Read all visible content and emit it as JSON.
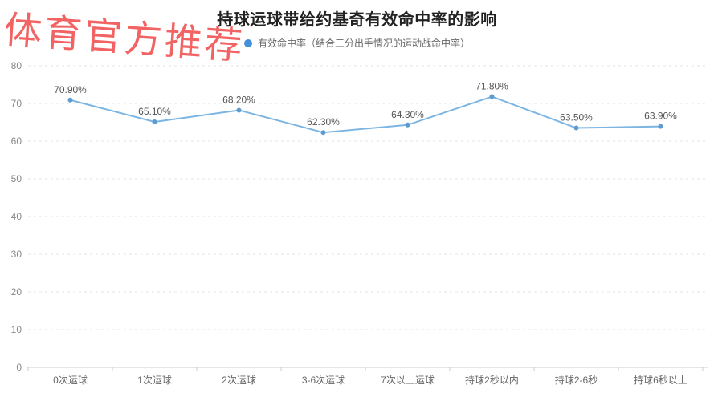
{
  "watermark": {
    "text": "体育官方推荐",
    "color": "#f26464"
  },
  "chart_data": {
    "type": "line",
    "title": "持球运球带给约基奇有效命中率的影响",
    "categories": [
      "0次运球",
      "1次运球",
      "2次运球",
      "3-6次运球",
      "7次以上运球",
      "持球2秒以内",
      "持球2-6秒",
      "持球6秒以上"
    ],
    "series": [
      {
        "name": "有效命中率（结合三分出手情况的运动战命中率）",
        "values": [
          70.9,
          65.1,
          68.2,
          62.3,
          64.3,
          71.8,
          63.5,
          63.9
        ],
        "labels": [
          "70.90%",
          "65.10%",
          "68.20%",
          "62.30%",
          "64.30%",
          "71.80%",
          "63.50%",
          "63.90%"
        ]
      }
    ],
    "xlabel": "",
    "ylabel": "",
    "ylim": [
      0,
      80
    ],
    "ytick_step": 10,
    "ytick_labels": [
      "0",
      "10",
      "20",
      "30",
      "40",
      "50",
      "60",
      "70",
      "80"
    ],
    "grid": "horizontal-dashed",
    "legend_position": "top-center",
    "colors": {
      "line": "#7cb5e2",
      "marker": "#5d9bd3",
      "legend_dot": "#4191db",
      "grid_line": "#e3e3e3",
      "axis_line": "#cccccc",
      "axis_label": "#888888",
      "category_label": "#666666",
      "data_label": "#555555"
    }
  }
}
